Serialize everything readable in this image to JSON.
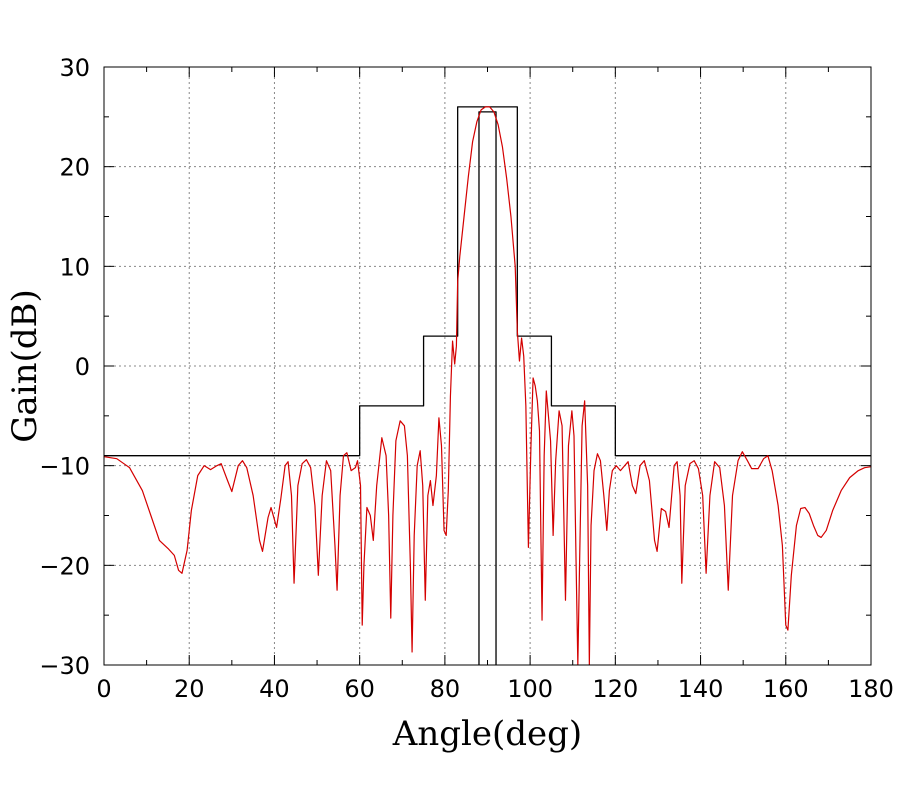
{
  "chart_data": {
    "type": "line",
    "title": "",
    "xlabel": "Angle(deg)",
    "ylabel": "Gain(dB)",
    "xlim": [
      0,
      180
    ],
    "ylim": [
      -30,
      30
    ],
    "x_ticks": [
      0,
      20,
      40,
      60,
      80,
      100,
      120,
      140,
      160,
      180
    ],
    "y_ticks": [
      -30,
      -20,
      -10,
      0,
      10,
      20,
      30
    ],
    "x_tick_labels": [
      "0",
      "20",
      "40",
      "60",
      "80",
      "100",
      "120",
      "140",
      "160",
      "180"
    ],
    "y_tick_labels": [
      "−30",
      "−20",
      "−10",
      "0",
      "10",
      "20",
      "30"
    ],
    "grid": true,
    "series": [
      {
        "color": "#000000",
        "style": "mask-step",
        "points": [
          [
            0,
            -9
          ],
          [
            60,
            -9
          ],
          [
            60,
            -4
          ],
          [
            75,
            -4
          ],
          [
            75,
            3
          ],
          [
            83,
            3
          ],
          [
            83,
            26
          ],
          [
            97,
            26
          ],
          [
            97,
            3
          ],
          [
            105,
            3
          ],
          [
            105,
            -4
          ],
          [
            120,
            -4
          ],
          [
            120,
            -9
          ],
          [
            180,
            -9
          ]
        ]
      },
      {
        "color": "#000000",
        "style": "mask-inner",
        "points": [
          [
            88,
            -30
          ],
          [
            88,
            25.5
          ],
          [
            92,
            25.5
          ],
          [
            92,
            -30
          ]
        ]
      },
      {
        "color": "#d40000",
        "style": "pattern",
        "points": [
          [
            0,
            -9.1
          ],
          [
            3,
            -9.3
          ],
          [
            6,
            -10.2
          ],
          [
            9,
            -12.5
          ],
          [
            11,
            -15
          ],
          [
            13,
            -17.5
          ],
          [
            15,
            -18.3
          ],
          [
            16.5,
            -19
          ],
          [
            17.5,
            -20.5
          ],
          [
            18.3,
            -20.8
          ],
          [
            19.5,
            -18.5
          ],
          [
            20.5,
            -14.5
          ],
          [
            22,
            -11
          ],
          [
            23.5,
            -10
          ],
          [
            25,
            -10.4
          ],
          [
            26.5,
            -10
          ],
          [
            27.5,
            -9.8
          ],
          [
            29,
            -11.5
          ],
          [
            30,
            -12.6
          ],
          [
            31.5,
            -10
          ],
          [
            32.5,
            -9.5
          ],
          [
            33.5,
            -10.2
          ],
          [
            35,
            -13
          ],
          [
            36.5,
            -17.5
          ],
          [
            37.2,
            -18.6
          ],
          [
            38.5,
            -15.2
          ],
          [
            39.2,
            -14.2
          ],
          [
            40.5,
            -16.2
          ],
          [
            41.5,
            -13.3
          ],
          [
            42.5,
            -10
          ],
          [
            43.2,
            -9.6
          ],
          [
            44,
            -13
          ],
          [
            44.6,
            -21.8
          ],
          [
            45.5,
            -12
          ],
          [
            46.5,
            -9.8
          ],
          [
            47.5,
            -9.4
          ],
          [
            48.5,
            -10.2
          ],
          [
            49.5,
            -14
          ],
          [
            50.3,
            -21
          ],
          [
            51.2,
            -13
          ],
          [
            52.2,
            -9.5
          ],
          [
            53.2,
            -10.5
          ],
          [
            54.2,
            -18
          ],
          [
            54.7,
            -22.5
          ],
          [
            55.4,
            -13
          ],
          [
            56.2,
            -9
          ],
          [
            57,
            -8.7
          ],
          [
            58,
            -10.5
          ],
          [
            59,
            -10.2
          ],
          [
            59.5,
            -9.5
          ],
          [
            60.2,
            -12
          ],
          [
            60.6,
            -26
          ],
          [
            61,
            -20
          ],
          [
            61.7,
            -14.2
          ],
          [
            62.5,
            -15
          ],
          [
            63.2,
            -17.5
          ],
          [
            64,
            -12
          ],
          [
            65.2,
            -7.2
          ],
          [
            66.2,
            -9
          ],
          [
            66.8,
            -15
          ],
          [
            67.3,
            -25.3
          ],
          [
            67.8,
            -15
          ],
          [
            68.5,
            -7.5
          ],
          [
            69.5,
            -5.5
          ],
          [
            70.5,
            -6
          ],
          [
            71.2,
            -9
          ],
          [
            71.9,
            -20
          ],
          [
            72.3,
            -28.7
          ],
          [
            72.8,
            -17
          ],
          [
            73.5,
            -10
          ],
          [
            74.2,
            -8.5
          ],
          [
            74.8,
            -12
          ],
          [
            75.4,
            -23.5
          ],
          [
            76,
            -13
          ],
          [
            76.6,
            -11.5
          ],
          [
            77.2,
            -14
          ],
          [
            78,
            -11
          ],
          [
            78.6,
            -5.2
          ],
          [
            79.2,
            -8
          ],
          [
            79.8,
            -16.5
          ],
          [
            80.3,
            -17
          ],
          [
            80.8,
            -12.5
          ],
          [
            81.3,
            -3
          ],
          [
            81.8,
            2.5
          ],
          [
            82.3,
            0.2
          ],
          [
            82.7,
            2
          ],
          [
            83,
            8.5
          ],
          [
            83.5,
            11
          ],
          [
            84.5,
            15
          ],
          [
            85.5,
            19
          ],
          [
            86.5,
            22.5
          ],
          [
            87.5,
            24.5
          ],
          [
            88.5,
            25.7
          ],
          [
            89.5,
            26
          ],
          [
            90.5,
            26
          ],
          [
            91.5,
            25.5
          ],
          [
            92.5,
            24.2
          ],
          [
            93.5,
            22
          ],
          [
            94.5,
            18.8
          ],
          [
            95.5,
            15
          ],
          [
            96.5,
            10
          ],
          [
            97,
            3.5
          ],
          [
            97.5,
            0.5
          ],
          [
            98,
            2.8
          ],
          [
            98.5,
            1
          ],
          [
            99,
            -4
          ],
          [
            99.6,
            -18.2
          ],
          [
            100.2,
            -8
          ],
          [
            100.7,
            -1.2
          ],
          [
            101.2,
            -2
          ],
          [
            101.7,
            -3.5
          ],
          [
            102.2,
            -6.5
          ],
          [
            102.8,
            -25.5
          ],
          [
            103.3,
            -9
          ],
          [
            103.8,
            -2.5
          ],
          [
            104.2,
            -4.5
          ],
          [
            104.8,
            -7.5
          ],
          [
            105.4,
            -17
          ],
          [
            106,
            -9.5
          ],
          [
            106.8,
            -4.5
          ],
          [
            107.5,
            -6
          ],
          [
            108.3,
            -23.5
          ],
          [
            109,
            -8
          ],
          [
            109.8,
            -4.5
          ],
          [
            110.3,
            -7
          ],
          [
            110.8,
            -20
          ],
          [
            111.2,
            -30
          ],
          [
            111.6,
            -20
          ],
          [
            112.2,
            -6
          ],
          [
            112.8,
            -3.5
          ],
          [
            113.5,
            -12
          ],
          [
            113.9,
            -30
          ],
          [
            114.3,
            -16
          ],
          [
            115,
            -10.5
          ],
          [
            115.8,
            -8.8
          ],
          [
            116.5,
            -9.5
          ],
          [
            117.3,
            -13
          ],
          [
            118,
            -16.5
          ],
          [
            118.6,
            -12.5
          ],
          [
            119.3,
            -10.5
          ],
          [
            120.2,
            -10
          ],
          [
            121.2,
            -10.5
          ],
          [
            122.2,
            -10
          ],
          [
            123,
            -9.6
          ],
          [
            124,
            -12
          ],
          [
            124.8,
            -12.8
          ],
          [
            125.8,
            -10
          ],
          [
            126.8,
            -9.5
          ],
          [
            128,
            -11.5
          ],
          [
            129.2,
            -17.5
          ],
          [
            129.8,
            -18.6
          ],
          [
            130.8,
            -14.3
          ],
          [
            131.8,
            -14.6
          ],
          [
            132.6,
            -16.2
          ],
          [
            133.8,
            -10
          ],
          [
            134.5,
            -9.6
          ],
          [
            135.2,
            -13
          ],
          [
            135.6,
            -21.8
          ],
          [
            136.4,
            -12
          ],
          [
            137.5,
            -9.8
          ],
          [
            138.5,
            -9.5
          ],
          [
            139.5,
            -10.3
          ],
          [
            140.5,
            -13
          ],
          [
            141.3,
            -20.8
          ],
          [
            142.2,
            -13
          ],
          [
            143.3,
            -9.6
          ],
          [
            144.5,
            -10.2
          ],
          [
            145.6,
            -14
          ],
          [
            146.5,
            -22.5
          ],
          [
            147.5,
            -13
          ],
          [
            148.8,
            -9.5
          ],
          [
            149.8,
            -8.6
          ],
          [
            151,
            -9.5
          ],
          [
            152,
            -10.3
          ],
          [
            153.5,
            -10.3
          ],
          [
            154.8,
            -9.3
          ],
          [
            155.8,
            -9
          ],
          [
            156.8,
            -10.5
          ],
          [
            158.2,
            -14
          ],
          [
            159.2,
            -18
          ],
          [
            160,
            -26
          ],
          [
            160.5,
            -26.5
          ],
          [
            161.3,
            -21
          ],
          [
            162.5,
            -16
          ],
          [
            163.5,
            -14.3
          ],
          [
            164.5,
            -14.2
          ],
          [
            165.5,
            -14.8
          ],
          [
            166.5,
            -16
          ],
          [
            167.5,
            -17
          ],
          [
            168.3,
            -17.2
          ],
          [
            169.5,
            -16.5
          ],
          [
            171,
            -14.5
          ],
          [
            173,
            -12.5
          ],
          [
            175,
            -11.2
          ],
          [
            177,
            -10.5
          ],
          [
            178.5,
            -10.2
          ],
          [
            180,
            -10.1
          ]
        ]
      }
    ]
  }
}
